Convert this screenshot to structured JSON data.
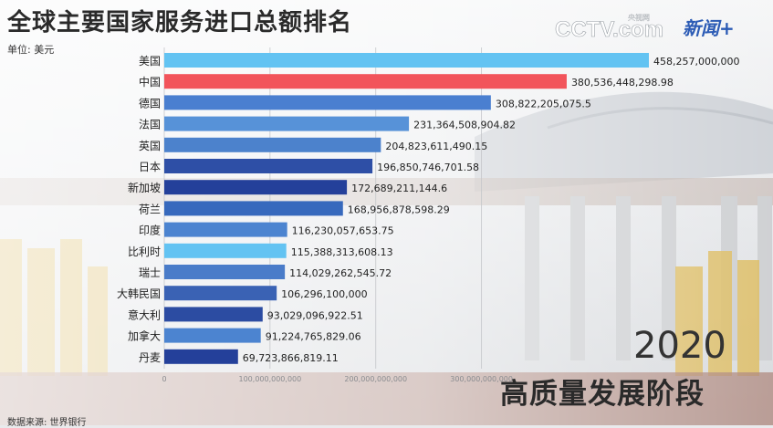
{
  "header": {
    "title": "全球主要国家服务进口总额排名",
    "unit": "单位: 美元",
    "logo_cctv": "CCTV.com",
    "logo_cctv_sub": "央视网",
    "logo_news": "新闻+"
  },
  "overlay": {
    "year": "2020",
    "stage": "高质量发展阶段",
    "source": "数据来源: 世界银行"
  },
  "colors": {
    "highlight_blue": "#63c3f2",
    "highlight_red": "#f2545b",
    "mid_blue": "#4c84d0",
    "deep_blue": "#2a4aa8"
  },
  "chart_data": {
    "type": "bar",
    "orientation": "horizontal",
    "categories": [
      "美国",
      "中国",
      "德国",
      "法国",
      "英国",
      "日本",
      "新加坡",
      "荷兰",
      "印度",
      "比利时",
      "瑞士",
      "大韩民国",
      "意大利",
      "加拿大",
      "丹麦"
    ],
    "values": [
      458257000000,
      380536448298.98,
      308822205075.5,
      231364508904.82,
      204823611490.15,
      196850746701.58,
      172689211144.6,
      168956878598.29,
      116230057653.75,
      115388313608.13,
      114029262545.72,
      106296100000,
      93029096922.51,
      91224765829.06,
      69723866819.11
    ],
    "value_labels": [
      "458,257,000,000",
      "380,536,448,298.98",
      "308,822,205,075.5",
      "231,364,508,904.82",
      "204,823,611,490.15",
      "196,850,746,701.58",
      "172,689,211,144.6",
      "168,956,878,598.29",
      "116,230,057,653.75",
      "115,388,313,608.13",
      "114,029,262,545.72",
      "106,296,100,000",
      "93,029,096,922.51",
      "91,224,765,829.06",
      "69,723,866,819.11"
    ],
    "bar_colors": [
      "#63c3f2",
      "#f2545b",
      "#4a7fd0",
      "#5792d8",
      "#4c82cc",
      "#2e4fa6",
      "#24409a",
      "#3769bd",
      "#4c84d0",
      "#63c3f2",
      "#4a7cc9",
      "#3a62b4",
      "#2c4ca2",
      "#4c84d0",
      "#24409a"
    ],
    "x_ticks": [
      0,
      100000000000,
      200000000000,
      300000000000
    ],
    "x_tick_labels": [
      "0",
      "100,000,000,000",
      "200,000,000,000",
      "300,000,000,000"
    ],
    "xlim": [
      0,
      458257000000
    ],
    "grid": true
  }
}
